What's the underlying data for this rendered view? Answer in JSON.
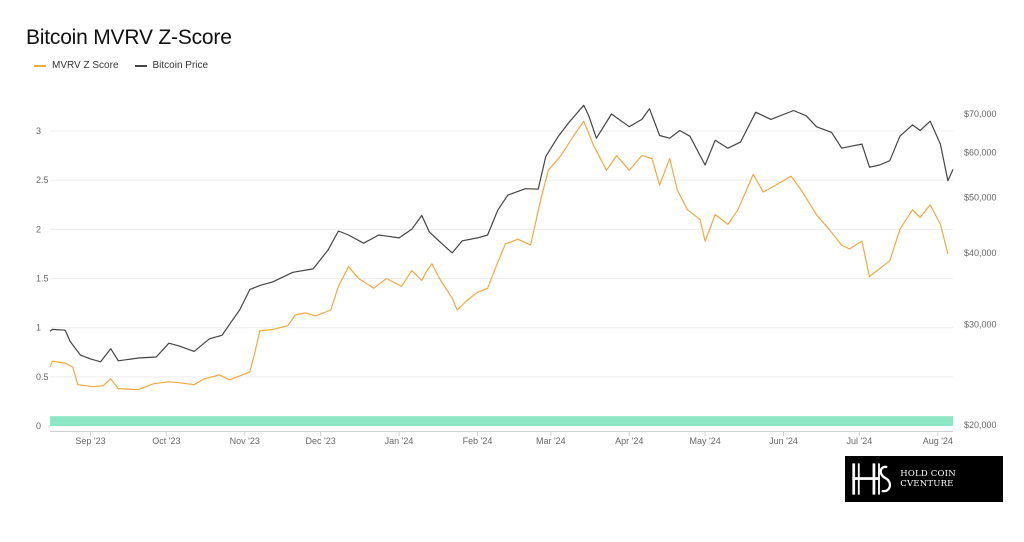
{
  "title": "Bitcoin MVRV Z-Score",
  "legend": [
    {
      "label": "MVRV Z Score",
      "color": "#f2a93b"
    },
    {
      "label": "Bitcoin Price",
      "color": "#444444"
    }
  ],
  "logo": {
    "text": "HOLD COIN CVENTURE"
  },
  "chart_data": {
    "type": "line",
    "x_start": "2023-08-16",
    "x_end": "2024-08-07",
    "x_tick_labels": [
      "Sep '23",
      "Oct '23",
      "Nov '23",
      "Dec '23",
      "Jan '24",
      "Feb '24",
      "Mar '24",
      "Apr '24",
      "May '24",
      "Jun '24",
      "Jul '24",
      "Aug '24"
    ],
    "x_tick_dates": [
      "2023-09-01",
      "2023-10-01",
      "2023-11-01",
      "2023-12-01",
      "2024-01-01",
      "2024-02-01",
      "2024-03-01",
      "2024-04-01",
      "2024-05-01",
      "2024-06-01",
      "2024-07-01",
      "2024-08-01"
    ],
    "left_axis": {
      "ticks": [
        0,
        0.5,
        1,
        1.5,
        2,
        2.5,
        3
      ],
      "tick_labels": [
        "0",
        "0.5",
        "1",
        "1.5",
        "2",
        "2.5",
        "3"
      ],
      "ylim": [
        0,
        3.5
      ]
    },
    "right_axis": {
      "scale": "log",
      "ticks": [
        20000,
        30000,
        40000,
        50000,
        60000,
        70000
      ],
      "tick_labels": [
        "$20,000",
        "$30,000",
        "$40,000",
        "$50,000",
        "$60,000",
        "$70,000"
      ],
      "ylim": [
        20000,
        76000
      ]
    },
    "grid": true,
    "zone_band": {
      "from": 0,
      "to": 0.1,
      "color": "#8de6c4"
    },
    "series": [
      {
        "name": "MVRV Z Score",
        "axis": "left",
        "color": "#f2a93b",
        "points": [
          [
            "2023-08-16",
            0.6
          ],
          [
            "2023-08-17",
            0.66
          ],
          [
            "2023-08-22",
            0.64
          ],
          [
            "2023-08-25",
            0.6
          ],
          [
            "2023-08-27",
            0.42
          ],
          [
            "2023-09-02",
            0.4
          ],
          [
            "2023-09-06",
            0.41
          ],
          [
            "2023-09-09",
            0.48
          ],
          [
            "2023-09-12",
            0.38
          ],
          [
            "2023-09-20",
            0.37
          ],
          [
            "2023-09-26",
            0.43
          ],
          [
            "2023-10-02",
            0.45
          ],
          [
            "2023-10-06",
            0.44
          ],
          [
            "2023-10-12",
            0.42
          ],
          [
            "2023-10-16",
            0.48
          ],
          [
            "2023-10-22",
            0.52
          ],
          [
            "2023-10-26",
            0.47
          ],
          [
            "2023-10-31",
            0.52
          ],
          [
            "2023-11-03",
            0.55
          ],
          [
            "2023-11-05",
            0.75
          ],
          [
            "2023-11-07",
            0.97
          ],
          [
            "2023-11-12",
            0.98
          ],
          [
            "2023-11-18",
            1.02
          ],
          [
            "2023-11-21",
            1.13
          ],
          [
            "2023-11-25",
            1.15
          ],
          [
            "2023-11-29",
            1.12
          ],
          [
            "2023-12-05",
            1.18
          ],
          [
            "2023-12-08",
            1.42
          ],
          [
            "2023-12-12",
            1.62
          ],
          [
            "2023-12-16",
            1.5
          ],
          [
            "2023-12-22",
            1.4
          ],
          [
            "2023-12-27",
            1.5
          ],
          [
            "2024-01-02",
            1.42
          ],
          [
            "2024-01-06",
            1.58
          ],
          [
            "2024-01-10",
            1.48
          ],
          [
            "2024-01-12",
            1.58
          ],
          [
            "2024-01-14",
            1.65
          ],
          [
            "2024-01-17",
            1.5
          ],
          [
            "2024-01-22",
            1.3
          ],
          [
            "2024-01-24",
            1.18
          ],
          [
            "2024-01-28",
            1.28
          ],
          [
            "2024-02-01",
            1.36
          ],
          [
            "2024-02-05",
            1.4
          ],
          [
            "2024-02-08",
            1.6
          ],
          [
            "2024-02-12",
            1.85
          ],
          [
            "2024-02-17",
            1.9
          ],
          [
            "2024-02-22",
            1.84
          ],
          [
            "2024-02-26",
            2.3
          ],
          [
            "2024-02-29",
            2.6
          ],
          [
            "2024-03-05",
            2.75
          ],
          [
            "2024-03-10",
            2.95
          ],
          [
            "2024-03-14",
            3.1
          ],
          [
            "2024-03-18",
            2.85
          ],
          [
            "2024-03-23",
            2.6
          ],
          [
            "2024-03-27",
            2.75
          ],
          [
            "2024-04-01",
            2.6
          ],
          [
            "2024-04-06",
            2.75
          ],
          [
            "2024-04-10",
            2.72
          ],
          [
            "2024-04-13",
            2.45
          ],
          [
            "2024-04-17",
            2.72
          ],
          [
            "2024-04-20",
            2.4
          ],
          [
            "2024-04-24",
            2.2
          ],
          [
            "2024-04-29",
            2.1
          ],
          [
            "2024-05-01",
            1.88
          ],
          [
            "2024-05-05",
            2.15
          ],
          [
            "2024-05-10",
            2.05
          ],
          [
            "2024-05-14",
            2.2
          ],
          [
            "2024-05-20",
            2.56
          ],
          [
            "2024-05-24",
            2.38
          ],
          [
            "2024-05-29",
            2.45
          ],
          [
            "2024-06-04",
            2.54
          ],
          [
            "2024-06-08",
            2.4
          ],
          [
            "2024-06-14",
            2.15
          ],
          [
            "2024-06-19",
            2.0
          ],
          [
            "2024-06-24",
            1.84
          ],
          [
            "2024-06-27",
            1.8
          ],
          [
            "2024-07-02",
            1.88
          ],
          [
            "2024-07-05",
            1.52
          ],
          [
            "2024-07-09",
            1.6
          ],
          [
            "2024-07-13",
            1.68
          ],
          [
            "2024-07-17",
            2.0
          ],
          [
            "2024-07-22",
            2.2
          ],
          [
            "2024-07-25",
            2.12
          ],
          [
            "2024-07-29",
            2.25
          ],
          [
            "2024-08-02",
            2.05
          ],
          [
            "2024-08-05",
            1.75
          ]
        ]
      },
      {
        "name": "Bitcoin Price",
        "axis": "right",
        "color": "#444444",
        "points": [
          [
            "2023-08-16",
            29200
          ],
          [
            "2023-08-17",
            29400
          ],
          [
            "2023-08-22",
            29300
          ],
          [
            "2023-08-24",
            28000
          ],
          [
            "2023-08-28",
            26500
          ],
          [
            "2023-09-01",
            26100
          ],
          [
            "2023-09-05",
            25800
          ],
          [
            "2023-09-09",
            27200
          ],
          [
            "2023-09-12",
            25900
          ],
          [
            "2023-09-20",
            26200
          ],
          [
            "2023-09-27",
            26300
          ],
          [
            "2023-10-02",
            27800
          ],
          [
            "2023-10-06",
            27500
          ],
          [
            "2023-10-12",
            26900
          ],
          [
            "2023-10-18",
            28300
          ],
          [
            "2023-10-23",
            28700
          ],
          [
            "2023-10-26",
            30000
          ],
          [
            "2023-10-30",
            31800
          ],
          [
            "2023-11-03",
            34500
          ],
          [
            "2023-11-07",
            35100
          ],
          [
            "2023-11-12",
            35600
          ],
          [
            "2023-11-20",
            37000
          ],
          [
            "2023-11-28",
            37500
          ],
          [
            "2023-12-04",
            40500
          ],
          [
            "2023-12-08",
            43700
          ],
          [
            "2023-12-12",
            43000
          ],
          [
            "2023-12-18",
            41600
          ],
          [
            "2023-12-24",
            43000
          ],
          [
            "2024-01-01",
            42500
          ],
          [
            "2024-01-06",
            44000
          ],
          [
            "2024-01-10",
            46500
          ],
          [
            "2024-01-13",
            43500
          ],
          [
            "2024-01-18",
            41500
          ],
          [
            "2024-01-22",
            40000
          ],
          [
            "2024-01-26",
            42000
          ],
          [
            "2024-02-01",
            42500
          ],
          [
            "2024-02-05",
            43000
          ],
          [
            "2024-02-09",
            47500
          ],
          [
            "2024-02-13",
            50500
          ],
          [
            "2024-02-20",
            51800
          ],
          [
            "2024-02-25",
            51700
          ],
          [
            "2024-02-28",
            59000
          ],
          [
            "2024-03-04",
            64000
          ],
          [
            "2024-03-08",
            67500
          ],
          [
            "2024-03-14",
            72500
          ],
          [
            "2024-03-16",
            69500
          ],
          [
            "2024-03-19",
            63500
          ],
          [
            "2024-03-25",
            70000
          ],
          [
            "2024-04-01",
            66500
          ],
          [
            "2024-04-06",
            68500
          ],
          [
            "2024-04-09",
            71500
          ],
          [
            "2024-04-13",
            64200
          ],
          [
            "2024-04-17",
            63500
          ],
          [
            "2024-04-21",
            65500
          ],
          [
            "2024-04-25",
            64000
          ],
          [
            "2024-05-01",
            57000
          ],
          [
            "2024-05-05",
            63000
          ],
          [
            "2024-05-10",
            61000
          ],
          [
            "2024-05-15",
            62500
          ],
          [
            "2024-05-21",
            70500
          ],
          [
            "2024-05-27",
            68500
          ],
          [
            "2024-06-05",
            71000
          ],
          [
            "2024-06-10",
            69500
          ],
          [
            "2024-06-14",
            66500
          ],
          [
            "2024-06-20",
            65000
          ],
          [
            "2024-06-24",
            61000
          ],
          [
            "2024-06-28",
            61500
          ],
          [
            "2024-07-02",
            62000
          ],
          [
            "2024-07-05",
            56500
          ],
          [
            "2024-07-09",
            57000
          ],
          [
            "2024-07-13",
            58000
          ],
          [
            "2024-07-17",
            64000
          ],
          [
            "2024-07-22",
            67000
          ],
          [
            "2024-07-25",
            65500
          ],
          [
            "2024-07-29",
            68000
          ],
          [
            "2024-08-02",
            62000
          ],
          [
            "2024-08-05",
            53500
          ],
          [
            "2024-08-07",
            56000
          ]
        ]
      }
    ]
  }
}
